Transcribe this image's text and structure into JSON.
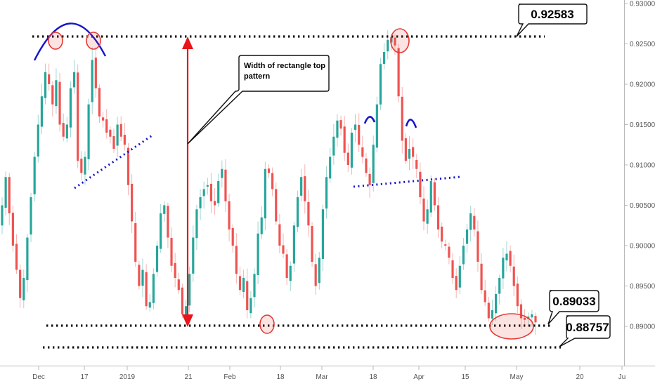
{
  "chart_data": {
    "type": "candlestick",
    "y_axis": {
      "position": "right",
      "range": [
        0.8855,
        0.9305
      ],
      "ticks": [
        "0.93000",
        "0.92500",
        "0.92000",
        "0.91500",
        "0.91000",
        "0.90500",
        "0.90000",
        "0.89500",
        "0.89000"
      ]
    },
    "x_axis": {
      "ticks": [
        "Dec",
        "17",
        "2019",
        "21",
        "Feb",
        "18",
        "Mar",
        "18",
        "Apr",
        "15",
        "May",
        "20",
        "Ju"
      ]
    },
    "grid": false,
    "levels": [
      {
        "name": "resistance",
        "value": 0.92583,
        "label": "0.92583"
      },
      {
        "name": "support-upper",
        "value": 0.89033,
        "label": "0.89033"
      },
      {
        "name": "support-lower",
        "value": 0.88757,
        "label": "0.88757"
      }
    ],
    "annotations": {
      "width_callout": "Width of rectangle top pattern"
    },
    "colors": {
      "up": "#26a69a",
      "down": "#ef5350",
      "arrow": "#e8141a",
      "trend": "#1515c8",
      "circle": "#e53935"
    },
    "close_path": [
      0.905,
      0.9085,
      0.904,
      0.9,
      0.897,
      0.8935,
      0.896,
      0.901,
      0.906,
      0.911,
      0.915,
      0.9185,
      0.9215,
      0.92,
      0.9175,
      0.9205,
      0.915,
      0.9135,
      0.915,
      0.9195,
      0.9215,
      0.9105,
      0.909,
      0.911,
      0.9175,
      0.923,
      0.9195,
      0.916,
      0.9155,
      0.914,
      0.9135,
      0.912,
      0.915,
      0.9135,
      0.9125,
      0.9075,
      0.903,
      0.898,
      0.895,
      0.897,
      0.8925,
      0.893,
      0.8965,
      0.9,
      0.904,
      0.905,
      0.901,
      0.8975,
      0.896,
      0.8945,
      0.8915,
      0.8925,
      0.8965,
      0.901,
      0.9045,
      0.906,
      0.907,
      0.9075,
      0.9055,
      0.905,
      0.908,
      0.9095,
      0.9055,
      0.902,
      0.9,
      0.8965,
      0.8945,
      0.896,
      0.892,
      0.8935,
      0.8965,
      0.9015,
      0.9035,
      0.9095,
      0.909,
      0.907,
      0.903,
      0.9,
      0.899,
      0.896,
      0.8975,
      0.9025,
      0.906,
      0.9085,
      0.9055,
      0.9025,
      0.898,
      0.895,
      0.8985,
      0.9045,
      0.9085,
      0.911,
      0.9135,
      0.9155,
      0.9145,
      0.9115,
      0.91,
      0.914,
      0.915,
      0.9125,
      0.911,
      0.909,
      0.9075,
      0.9125,
      0.9175,
      0.9225,
      0.924,
      0.9255,
      0.9258,
      0.9248,
      0.9185,
      0.913,
      0.9105,
      0.912,
      0.911,
      0.9095,
      0.906,
      0.903,
      0.9045,
      0.908,
      0.905,
      0.902,
      0.9005,
      0.9,
      0.8985,
      0.896,
      0.8945,
      0.8975,
      0.9,
      0.902,
      0.904,
      0.902,
      0.898,
      0.8945,
      0.893,
      0.891,
      0.892,
      0.894,
      0.896,
      0.8985,
      0.899,
      0.8975,
      0.895,
      0.8925,
      0.891,
      0.8908,
      0.8912,
      0.8915,
      0.8905
    ]
  }
}
